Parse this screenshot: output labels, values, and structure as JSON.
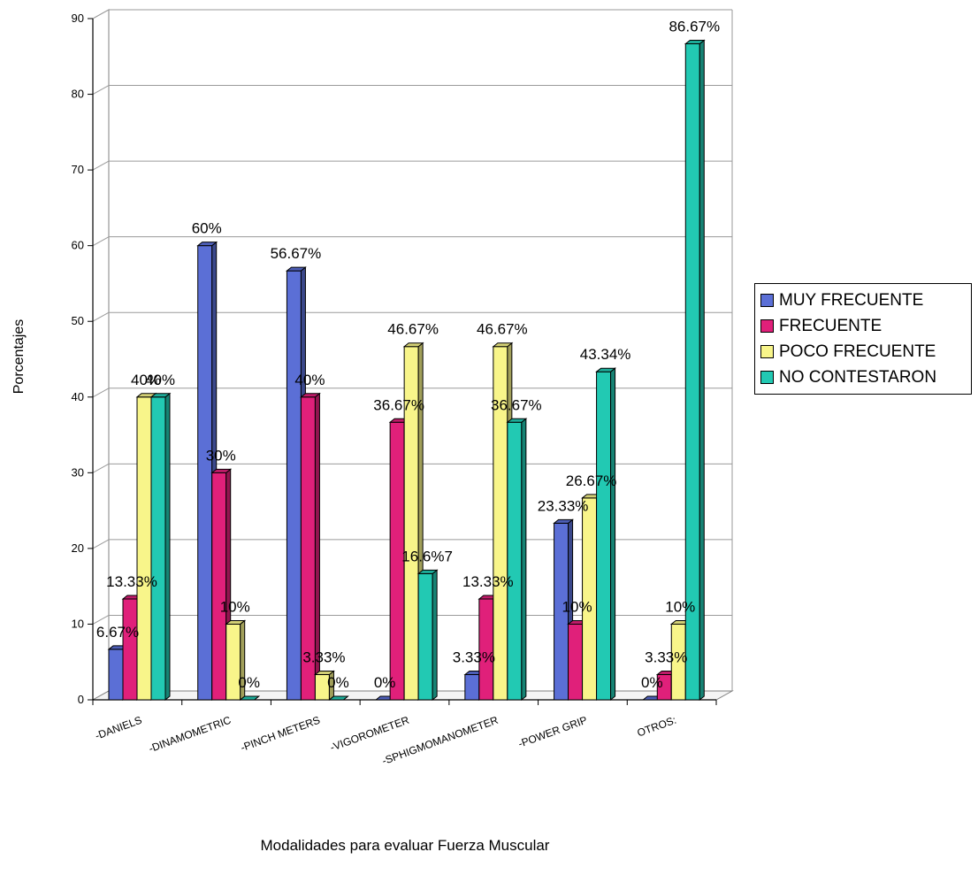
{
  "chart_data": {
    "type": "bar",
    "title": "",
    "xlabel": "Modalidades para evaluar Fuerza Muscular",
    "ylabel": "Porcentajes",
    "ylim": [
      0,
      90
    ],
    "yticks": [
      0,
      10,
      20,
      30,
      40,
      50,
      60,
      70,
      80,
      90
    ],
    "grid": true,
    "legend_position": "right",
    "categories": [
      "-DANIELS",
      "-DINAMOMETRIC",
      "-PINCH METERS",
      "-VIGOROMETER",
      "-SPHIGMOMANOMETER",
      "-POWER GRIP",
      "OTROS:"
    ],
    "series": [
      {
        "name": "MUY  FRECUENTE",
        "color": "#5b6fd6",
        "values": [
          6.67,
          60,
          56.67,
          0,
          3.33,
          23.33,
          0
        ],
        "labels": [
          "6.67%",
          "60%",
          "56.67%",
          "0%",
          "3.33%",
          "23.33%",
          "0%"
        ]
      },
      {
        "name": "FRECUENTE",
        "color": "#e0207a",
        "values": [
          13.33,
          30,
          40,
          36.67,
          13.33,
          10,
          3.33
        ],
        "labels": [
          "13.33%",
          "30%",
          "40%",
          "36.67%",
          "13.33%",
          "10%",
          "3.33%"
        ]
      },
      {
        "name": "POCO FRECUENTE",
        "color": "#f8f58a",
        "values": [
          40,
          10,
          3.33,
          46.67,
          46.67,
          26.67,
          10
        ],
        "labels": [
          "40%",
          "10%",
          "3.33%",
          "46.67%",
          "46.67%",
          "26.67%",
          "10%"
        ]
      },
      {
        "name": "NO CONTESTARON",
        "color": "#22c9b3",
        "values": [
          40,
          0,
          0,
          16.67,
          36.67,
          43.34,
          86.67
        ],
        "labels": [
          "40%",
          "0%",
          "0%",
          "16.6%7",
          "36.67%",
          "43.34%",
          "86.67%"
        ]
      }
    ]
  }
}
